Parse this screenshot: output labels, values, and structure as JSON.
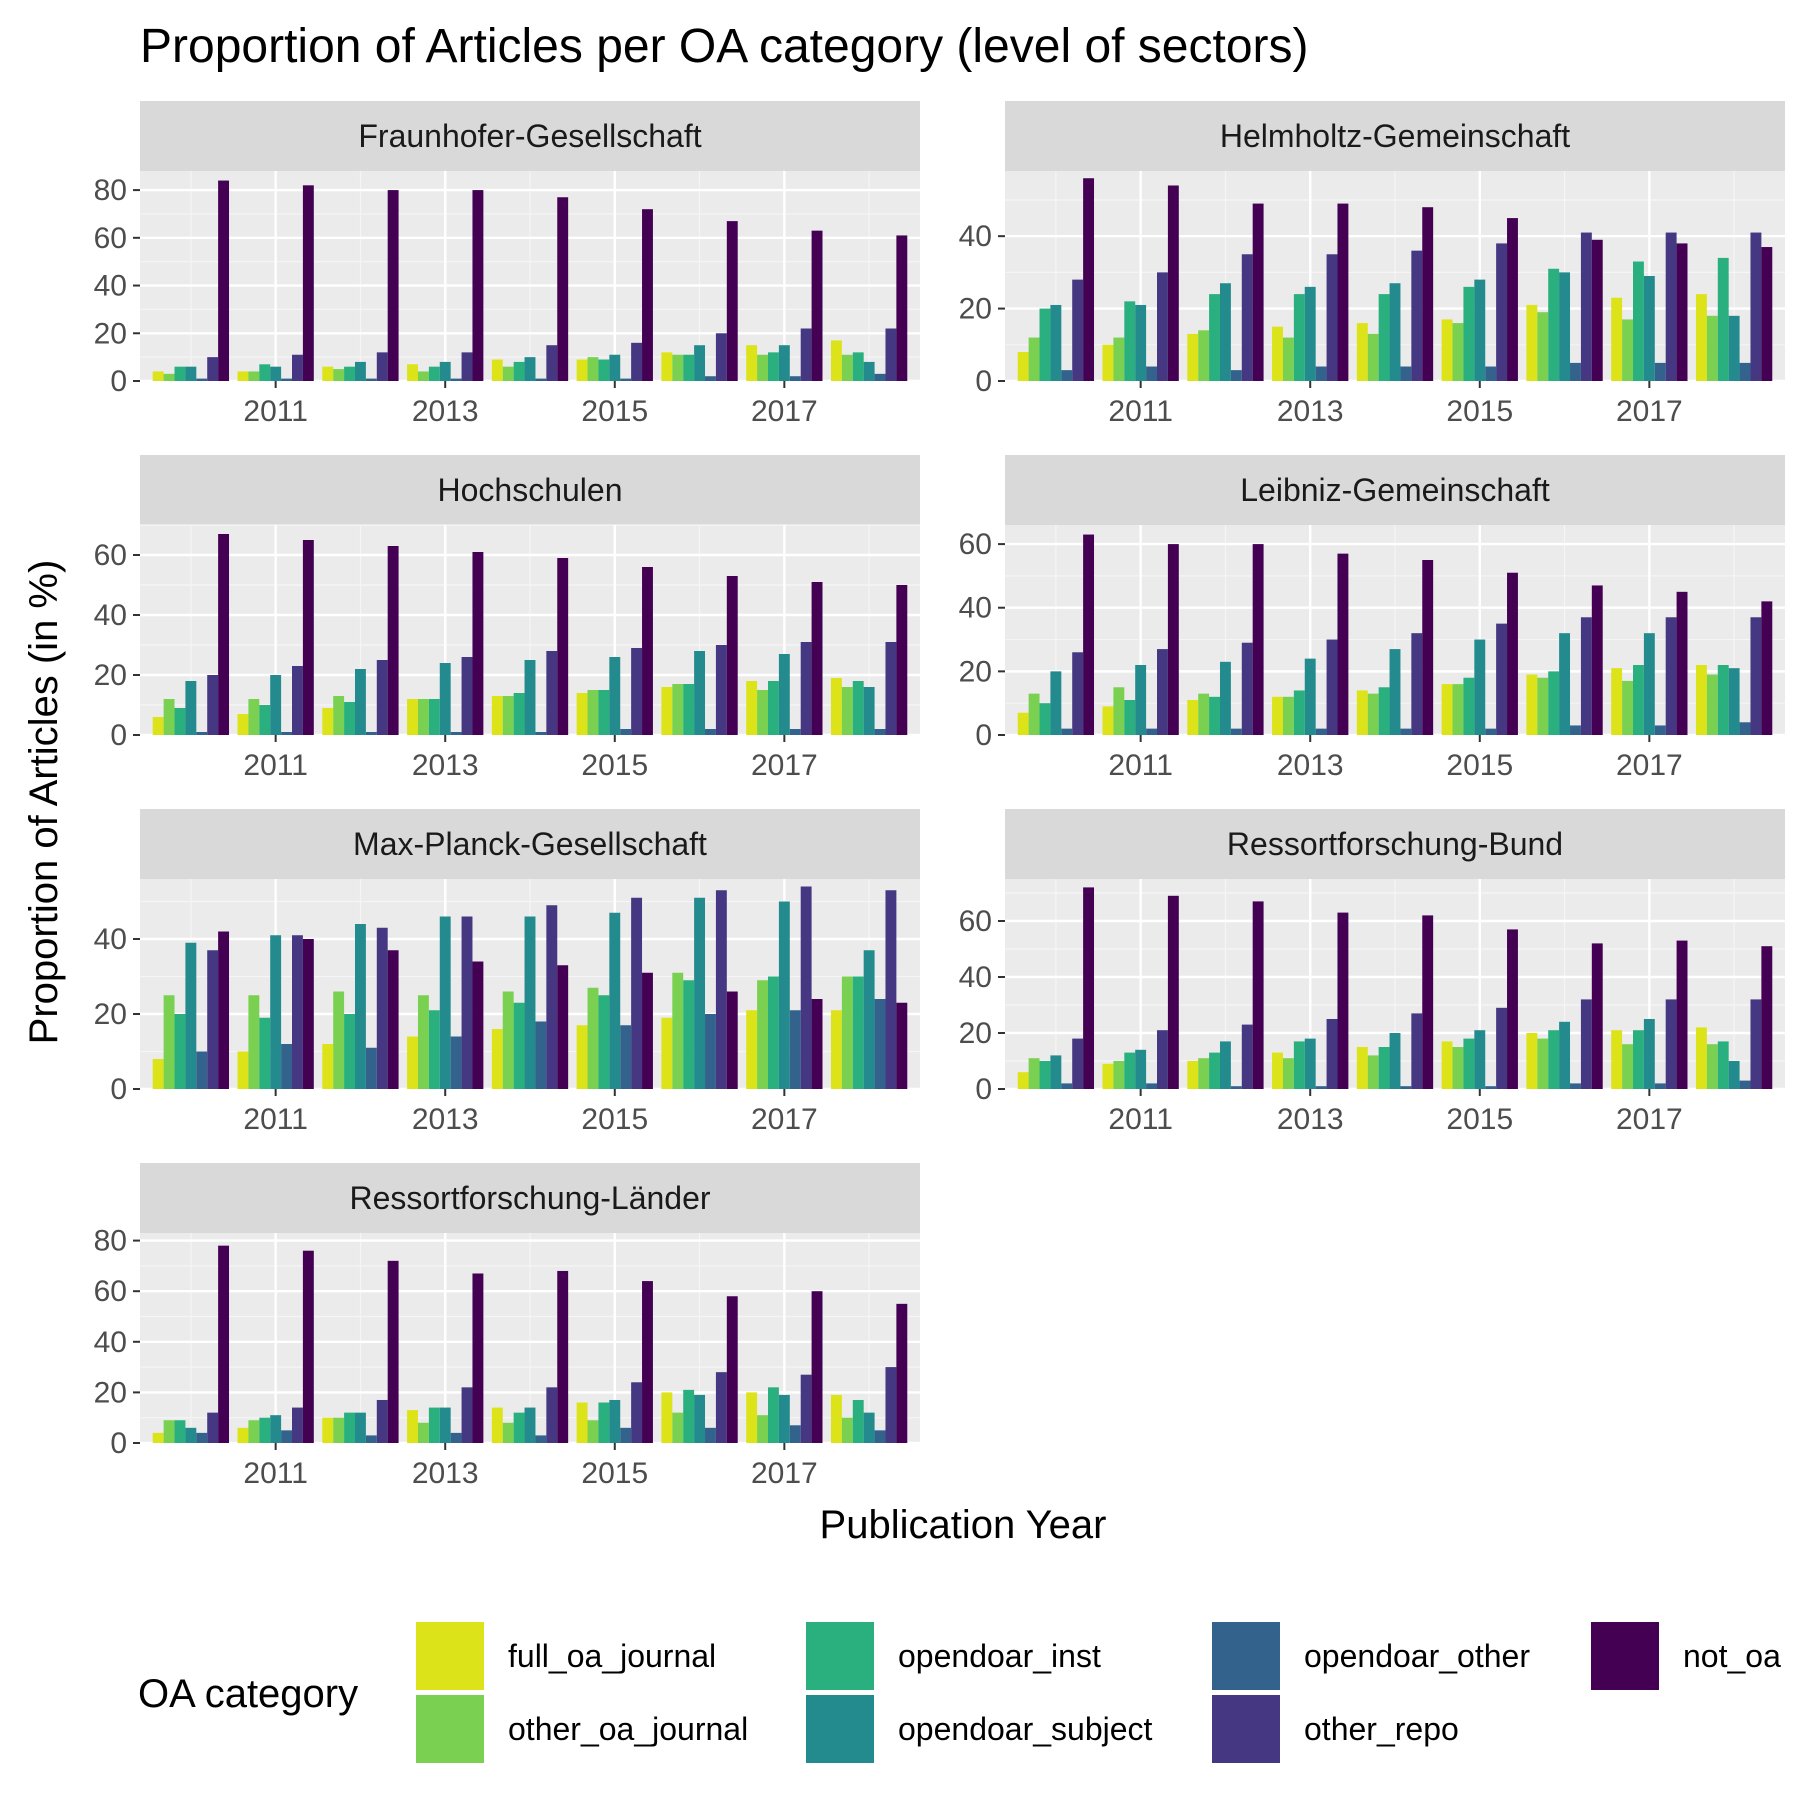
{
  "chart_data": {
    "type": "bar",
    "title": "Proportion of Articles per OA category (level of sectors)",
    "xlabel": "Publication Year",
    "ylabel": "Proportion of Articles (in %)",
    "years": [
      2010,
      2011,
      2012,
      2013,
      2014,
      2015,
      2016,
      2017,
      2018
    ],
    "x_tick_labels": [
      "2011",
      "2013",
      "2015",
      "2017"
    ],
    "x_tick_values": [
      2011,
      2013,
      2015,
      2017
    ],
    "legend": {
      "title": "OA category",
      "position": "bottom",
      "entries": [
        "full_oa_journal",
        "other_oa_journal",
        "opendoar_inst",
        "opendoar_subject",
        "opendoar_other",
        "other_repo",
        "not_oa"
      ]
    },
    "colors": {
      "full_oa_journal": "#dce319",
      "other_oa_journal": "#7ad151",
      "opendoar_inst": "#2ab07f",
      "opendoar_subject": "#238a8d",
      "opendoar_other": "#33638d",
      "other_repo": "#453781",
      "not_oa": "#440154"
    },
    "panels": [
      {
        "name": "Fraunhofer-Gesellschaft",
        "ylim": [
          0,
          88
        ],
        "yticks": [
          0,
          20,
          40,
          60,
          80
        ],
        "values": [
          [
            4,
            3,
            6,
            6,
            1,
            10,
            84
          ],
          [
            4,
            4,
            7,
            6,
            1,
            11,
            82
          ],
          [
            6,
            5,
            6,
            8,
            1,
            12,
            80
          ],
          [
            7,
            4,
            6,
            8,
            1,
            12,
            80
          ],
          [
            9,
            6,
            8,
            10,
            1,
            15,
            77
          ],
          [
            9,
            10,
            9,
            11,
            1,
            16,
            72
          ],
          [
            12,
            11,
            11,
            15,
            2,
            20,
            67
          ],
          [
            15,
            11,
            12,
            15,
            2,
            22,
            63
          ],
          [
            17,
            11,
            12,
            8,
            3,
            22,
            61
          ]
        ]
      },
      {
        "name": "Helmholtz-Gemeinschaft",
        "ylim": [
          0,
          58
        ],
        "yticks": [
          0,
          20,
          40
        ],
        "values": [
          [
            8,
            12,
            20,
            21,
            3,
            28,
            56
          ],
          [
            10,
            12,
            22,
            21,
            4,
            30,
            54
          ],
          [
            13,
            14,
            24,
            27,
            3,
            35,
            49
          ],
          [
            15,
            12,
            24,
            26,
            4,
            35,
            49
          ],
          [
            16,
            13,
            24,
            27,
            4,
            36,
            48
          ],
          [
            17,
            16,
            26,
            28,
            4,
            38,
            45
          ],
          [
            21,
            19,
            31,
            30,
            5,
            41,
            39
          ],
          [
            23,
            17,
            33,
            29,
            5,
            41,
            38
          ],
          [
            24,
            18,
            34,
            18,
            5,
            41,
            37
          ]
        ]
      },
      {
        "name": "Hochschulen",
        "ylim": [
          0,
          70
        ],
        "yticks": [
          0,
          20,
          40,
          60
        ],
        "values": [
          [
            6,
            12,
            9,
            18,
            1,
            20,
            67
          ],
          [
            7,
            12,
            10,
            20,
            1,
            23,
            65
          ],
          [
            9,
            13,
            11,
            22,
            1,
            25,
            63
          ],
          [
            12,
            12,
            12,
            24,
            1,
            26,
            61
          ],
          [
            13,
            13,
            14,
            25,
            1,
            28,
            59
          ],
          [
            14,
            15,
            15,
            26,
            2,
            29,
            56
          ],
          [
            16,
            17,
            17,
            28,
            2,
            30,
            53
          ],
          [
            18,
            15,
            18,
            27,
            2,
            31,
            51
          ],
          [
            19,
            16,
            18,
            16,
            2,
            31,
            50
          ]
        ]
      },
      {
        "name": "Leibniz-Gemeinschaft",
        "ylim": [
          0,
          66
        ],
        "yticks": [
          0,
          20,
          40,
          60
        ],
        "values": [
          [
            7,
            13,
            10,
            20,
            2,
            26,
            63
          ],
          [
            9,
            15,
            11,
            22,
            2,
            27,
            60
          ],
          [
            11,
            13,
            12,
            23,
            2,
            29,
            60
          ],
          [
            12,
            12,
            14,
            24,
            2,
            30,
            57
          ],
          [
            14,
            13,
            15,
            27,
            2,
            32,
            55
          ],
          [
            16,
            16,
            18,
            30,
            2,
            35,
            51
          ],
          [
            19,
            18,
            20,
            32,
            3,
            37,
            47
          ],
          [
            21,
            17,
            22,
            32,
            3,
            37,
            45
          ],
          [
            22,
            19,
            22,
            21,
            4,
            37,
            42
          ]
        ]
      },
      {
        "name": "Max-Planck-Gesellschaft",
        "ylim": [
          0,
          56
        ],
        "yticks": [
          0,
          20,
          40
        ],
        "values": [
          [
            8,
            25,
            20,
            39,
            10,
            37,
            42
          ],
          [
            10,
            25,
            19,
            41,
            12,
            41,
            40
          ],
          [
            12,
            26,
            20,
            44,
            11,
            43,
            37
          ],
          [
            14,
            25,
            21,
            46,
            14,
            46,
            34
          ],
          [
            16,
            26,
            23,
            46,
            18,
            49,
            33
          ],
          [
            17,
            27,
            25,
            47,
            17,
            51,
            31
          ],
          [
            19,
            31,
            29,
            51,
            20,
            53,
            26
          ],
          [
            21,
            29,
            30,
            50,
            21,
            54,
            24
          ],
          [
            21,
            30,
            30,
            37,
            24,
            53,
            23
          ]
        ]
      },
      {
        "name": "Ressortforschung-Bund",
        "ylim": [
          0,
          75
        ],
        "yticks": [
          0,
          20,
          40,
          60
        ],
        "values": [
          [
            6,
            11,
            10,
            12,
            2,
            18,
            72
          ],
          [
            9,
            10,
            13,
            14,
            2,
            21,
            69
          ],
          [
            10,
            11,
            13,
            17,
            1,
            23,
            67
          ],
          [
            13,
            11,
            17,
            18,
            1,
            25,
            63
          ],
          [
            15,
            12,
            15,
            20,
            1,
            27,
            62
          ],
          [
            17,
            15,
            18,
            21,
            1,
            29,
            57
          ],
          [
            20,
            18,
            21,
            24,
            2,
            32,
            52
          ],
          [
            21,
            16,
            21,
            25,
            2,
            32,
            53
          ],
          [
            22,
            16,
            17,
            10,
            3,
            32,
            51
          ]
        ]
      },
      {
        "name": "Ressortforschung-Länder",
        "ylim": [
          0,
          83
        ],
        "yticks": [
          0,
          20,
          40,
          60,
          80
        ],
        "values": [
          [
            4,
            9,
            9,
            6,
            4,
            12,
            78
          ],
          [
            6,
            9,
            10,
            11,
            5,
            14,
            76
          ],
          [
            10,
            10,
            12,
            12,
            3,
            17,
            72
          ],
          [
            13,
            8,
            14,
            14,
            4,
            22,
            67
          ],
          [
            14,
            8,
            12,
            14,
            3,
            22,
            68
          ],
          [
            16,
            9,
            16,
            17,
            6,
            24,
            64
          ],
          [
            20,
            12,
            21,
            19,
            6,
            28,
            58
          ],
          [
            20,
            11,
            22,
            19,
            7,
            27,
            60
          ],
          [
            19,
            10,
            17,
            12,
            5,
            30,
            55
          ]
        ]
      }
    ]
  }
}
